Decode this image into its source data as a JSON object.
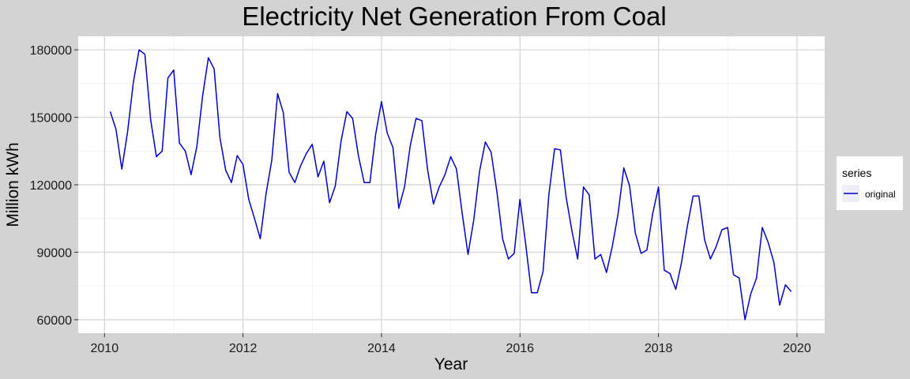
{
  "chart_data": {
    "type": "line",
    "title": "Electricity Net Generation From Coal",
    "xlabel": "Year",
    "ylabel": "Million kWh",
    "xlim": [
      2009.62,
      2020.4
    ],
    "ylim": [
      54000,
      186000
    ],
    "x_ticks": [
      2010,
      2012,
      2014,
      2016,
      2018,
      2020
    ],
    "y_ticks": [
      60000,
      90000,
      120000,
      150000,
      180000
    ],
    "grid": true,
    "legend": {
      "title": "series",
      "position": "right",
      "entries": [
        "original"
      ]
    },
    "series": [
      {
        "name": "original",
        "color": "#0000cd",
        "x_start": 2010.083,
        "x_step": 0.08333,
        "values": [
          152500,
          144500,
          127000,
          143500,
          165500,
          180000,
          178000,
          149000,
          132500,
          135000,
          167500,
          171000,
          138500,
          135000,
          124500,
          137000,
          159500,
          176500,
          171500,
          141000,
          126500,
          121000,
          133000,
          129000,
          113500,
          105000,
          96000,
          116000,
          131000,
          160500,
          152000,
          125500,
          121000,
          128500,
          134000,
          138000,
          123500,
          130500,
          112000,
          119500,
          139500,
          152500,
          149500,
          133000,
          121000,
          121000,
          142500,
          157000,
          143000,
          136500,
          109500,
          119000,
          137500,
          149500,
          148500,
          126500,
          111500,
          119000,
          124500,
          132500,
          127000,
          107000,
          89000,
          104500,
          126000,
          139000,
          134500,
          117000,
          96000,
          87000,
          89500,
          113500,
          93500,
          72000,
          72000,
          81500,
          115500,
          136000,
          135500,
          114500,
          99500,
          87000,
          119000,
          115500,
          87000,
          89000,
          81000,
          92500,
          107000,
          127500,
          119500,
          98500,
          89500,
          91000,
          107000,
          119000,
          82000,
          80500,
          73500,
          85500,
          101500,
          115000,
          115000,
          95500,
          87000,
          92500,
          100000,
          101000,
          80000,
          78500,
          60000,
          71500,
          78500,
          101000,
          94500,
          85500,
          66500,
          75500,
          72500
        ]
      }
    ]
  }
}
